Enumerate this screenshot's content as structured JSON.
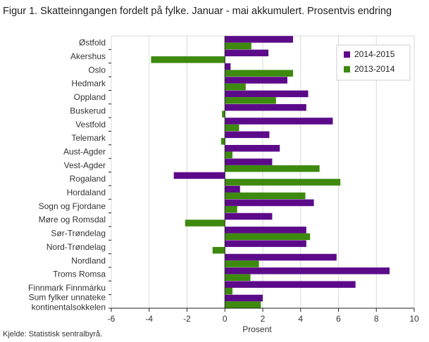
{
  "title": "Figur 1. Skatteinngangen fordelt på fylke. Januar - mai akkumulert. Prosentvis endring",
  "source": "Kjelde: Statistisk sentralbyrå.",
  "colors": {
    "series_2014_2015": "#5c0a8a",
    "series_2013_2014": "#3d8a0e",
    "grid": "#d9d9d9",
    "axis": "#222222"
  },
  "chart_data": {
    "type": "bar",
    "orientation": "horizontal",
    "title": "Figur 1. Skatteinngangen fordelt på fylke. Januar - mai akkumulert. Prosentvis endring",
    "xlabel": "Prosent",
    "ylabel": "",
    "xlim": [
      -6,
      10
    ],
    "xticks": [
      -6,
      -4,
      -2,
      0,
      2,
      4,
      6,
      8,
      10
    ],
    "grid": true,
    "legend_position": "top-right",
    "categories": [
      "Østfold",
      "Akershus",
      "Oslo",
      "Hedmark",
      "Oppland",
      "Buskerud",
      "Vestfold",
      "Telemark",
      "Aust-Agder",
      "Vest-Agder",
      "Rogaland",
      "Hordaland",
      "Sogn og Fjordane",
      "Møre og Romsdal",
      "Sør-Trøndelag",
      "Nord-Trøndelag",
      "Nordland",
      "Troms Romsa",
      "Finnmark Finnmárku",
      "Sum fylker unnateke kontinentalsokkelen"
    ],
    "category_lines": [
      [
        "Østfold"
      ],
      [
        "Akershus"
      ],
      [
        "Oslo"
      ],
      [
        "Hedmark"
      ],
      [
        "Oppland"
      ],
      [
        "Buskerud"
      ],
      [
        "Vestfold"
      ],
      [
        "Telemark"
      ],
      [
        "Aust-Agder"
      ],
      [
        "Vest-Agder"
      ],
      [
        "Rogaland"
      ],
      [
        "Hordaland"
      ],
      [
        "Sogn og Fjordane"
      ],
      [
        "Møre og Romsdal"
      ],
      [
        "Sør-Trøndelag"
      ],
      [
        "Nord-Trøndelag"
      ],
      [
        "Nordland"
      ],
      [
        "Troms Romsa"
      ],
      [
        "Finnmark Finnmárku"
      ],
      [
        "Sum fylker unnateke",
        "kontinentalsokkelen"
      ]
    ],
    "series": [
      {
        "name": "2014-2015",
        "color": "#5c0a8a",
        "values": [
          3.6,
          2.3,
          0.3,
          3.3,
          4.4,
          4.3,
          5.7,
          2.35,
          2.9,
          2.5,
          -2.7,
          0.8,
          4.7,
          2.5,
          4.3,
          4.3,
          5.9,
          8.7,
          6.9,
          2.0
        ]
      },
      {
        "name": "2013-2014",
        "color": "#3d8a0e",
        "values": [
          1.4,
          -3.9,
          3.6,
          1.1,
          2.7,
          -0.15,
          0.75,
          -0.2,
          0.4,
          5.0,
          6.1,
          4.25,
          0.65,
          -2.1,
          4.5,
          -0.65,
          1.8,
          1.35,
          0.4,
          1.9
        ]
      }
    ]
  }
}
